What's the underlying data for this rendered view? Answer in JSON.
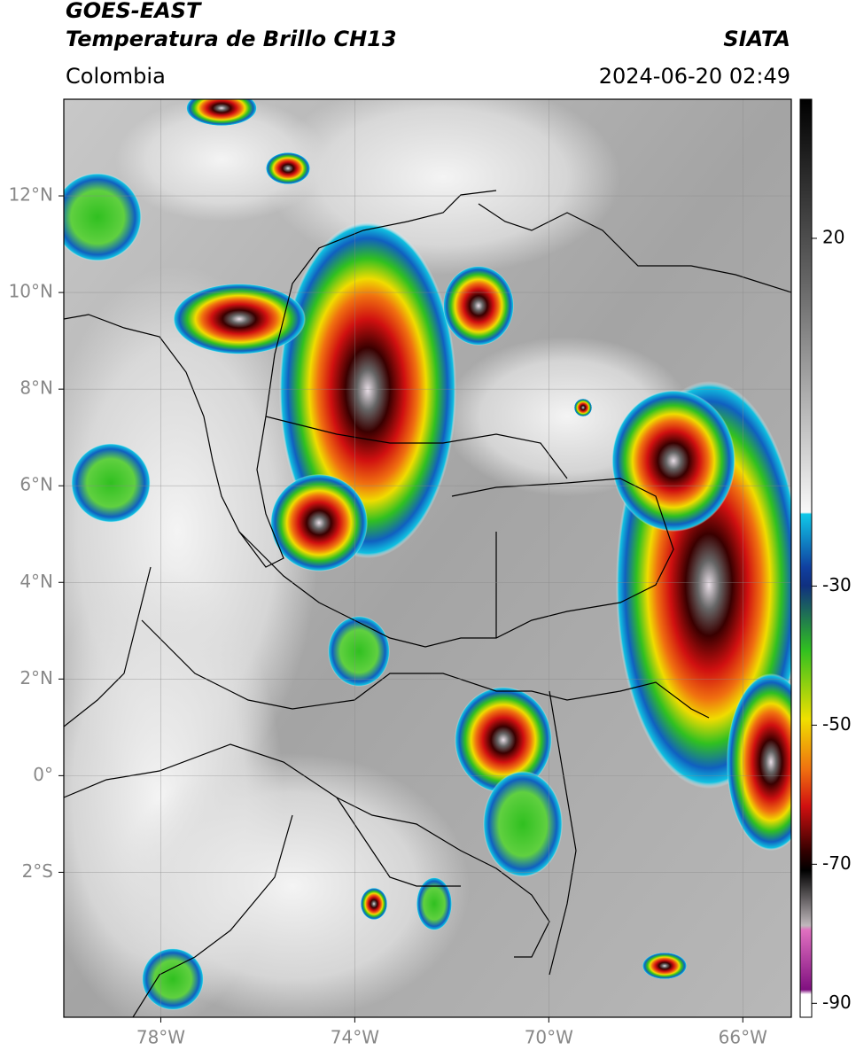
{
  "header": {
    "satellite": "GOES-EAST",
    "product": "Temperatura de Brillo CH13",
    "region": "Colombia",
    "source": "SIATA",
    "datetime": "2024-06-20 02:49"
  },
  "map": {
    "xlim": [
      -80,
      -65
    ],
    "ylim": [
      -5,
      14
    ],
    "xticks": [
      {
        "value": -78,
        "label": "78°W"
      },
      {
        "value": -74,
        "label": "74°W"
      },
      {
        "value": -70,
        "label": "70°W"
      },
      {
        "value": -66,
        "label": "66°W"
      }
    ],
    "yticks": [
      {
        "value": 12,
        "label": "12°N"
      },
      {
        "value": 10,
        "label": "10°N"
      },
      {
        "value": 8,
        "label": "8°N"
      },
      {
        "value": 6,
        "label": "6°N"
      },
      {
        "value": 4,
        "label": "4°N"
      },
      {
        "value": 2,
        "label": "2°N"
      },
      {
        "value": 0,
        "label": "0°"
      },
      {
        "value": -2,
        "label": "2°S"
      }
    ]
  },
  "colorbar": {
    "lim": [
      -92,
      40
    ],
    "ticks": [
      20,
      -30,
      -50,
      -70,
      -90
    ]
  }
}
